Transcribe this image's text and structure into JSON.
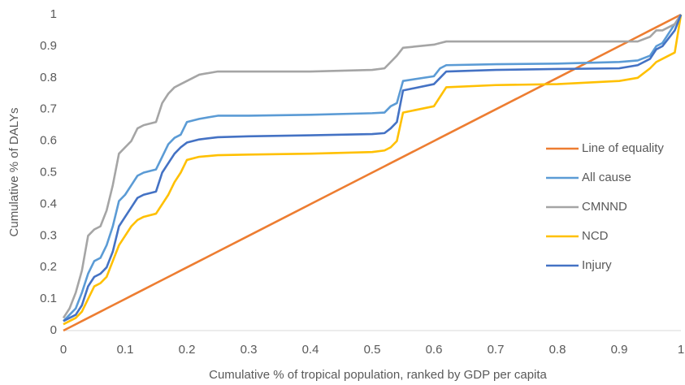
{
  "chart_data": {
    "type": "line",
    "x_label": "Cumulative % of tropical population, ranked by GDP per capita",
    "y_label": "Cumulative % of DALYs",
    "x": [
      0,
      0.01,
      0.02,
      0.03,
      0.04,
      0.05,
      0.06,
      0.07,
      0.08,
      0.09,
      0.1,
      0.11,
      0.12,
      0.13,
      0.15,
      0.16,
      0.17,
      0.18,
      0.19,
      0.2,
      0.22,
      0.25,
      0.3,
      0.4,
      0.5,
      0.52,
      0.53,
      0.54,
      0.55,
      0.6,
      0.61,
      0.62,
      0.7,
      0.8,
      0.9,
      0.93,
      0.95,
      0.96,
      0.97,
      0.99,
      1
    ],
    "series": [
      {
        "name": "Line of equality",
        "color": "#ED7D31",
        "values": [
          0,
          0.01,
          0.02,
          0.03,
          0.04,
          0.05,
          0.06,
          0.07,
          0.08,
          0.09,
          0.1,
          0.11,
          0.12,
          0.13,
          0.15,
          0.16,
          0.17,
          0.18,
          0.19,
          0.2,
          0.22,
          0.25,
          0.3,
          0.4,
          0.5,
          0.52,
          0.53,
          0.54,
          0.55,
          0.6,
          0.61,
          0.62,
          0.7,
          0.8,
          0.9,
          0.93,
          0.95,
          0.96,
          0.97,
          0.99,
          1
        ]
      },
      {
        "name": "All cause",
        "color": "#5B9BD5",
        "values": [
          0.03,
          0.05,
          0.07,
          0.12,
          0.18,
          0.22,
          0.23,
          0.27,
          0.33,
          0.41,
          0.43,
          0.46,
          0.49,
          0.5,
          0.51,
          0.55,
          0.59,
          0.61,
          0.62,
          0.66,
          0.67,
          0.68,
          0.68,
          0.683,
          0.688,
          0.69,
          0.71,
          0.72,
          0.79,
          0.805,
          0.83,
          0.84,
          0.843,
          0.845,
          0.85,
          0.855,
          0.87,
          0.9,
          0.91,
          0.97,
          1
        ]
      },
      {
        "name": "CMNND",
        "color": "#A5A5A5",
        "values": [
          0.04,
          0.07,
          0.12,
          0.19,
          0.3,
          0.32,
          0.33,
          0.38,
          0.46,
          0.56,
          0.58,
          0.6,
          0.64,
          0.65,
          0.66,
          0.72,
          0.75,
          0.77,
          0.78,
          0.79,
          0.81,
          0.82,
          0.82,
          0.82,
          0.825,
          0.83,
          0.85,
          0.87,
          0.895,
          0.905,
          0.91,
          0.915,
          0.915,
          0.915,
          0.915,
          0.915,
          0.93,
          0.95,
          0.95,
          0.97,
          1
        ]
      },
      {
        "name": "NCD",
        "color": "#FFC000",
        "values": [
          0.02,
          0.03,
          0.04,
          0.06,
          0.1,
          0.14,
          0.15,
          0.17,
          0.22,
          0.27,
          0.3,
          0.33,
          0.35,
          0.36,
          0.37,
          0.4,
          0.43,
          0.47,
          0.5,
          0.54,
          0.55,
          0.555,
          0.557,
          0.56,
          0.565,
          0.57,
          0.58,
          0.6,
          0.69,
          0.71,
          0.74,
          0.77,
          0.777,
          0.78,
          0.79,
          0.8,
          0.83,
          0.85,
          0.86,
          0.88,
          1
        ]
      },
      {
        "name": "Injury",
        "color": "#4472C4",
        "values": [
          0.03,
          0.04,
          0.05,
          0.08,
          0.14,
          0.17,
          0.18,
          0.2,
          0.25,
          0.33,
          0.36,
          0.39,
          0.42,
          0.43,
          0.44,
          0.5,
          0.53,
          0.56,
          0.58,
          0.595,
          0.605,
          0.612,
          0.615,
          0.618,
          0.622,
          0.625,
          0.64,
          0.66,
          0.76,
          0.78,
          0.8,
          0.82,
          0.825,
          0.828,
          0.83,
          0.84,
          0.86,
          0.89,
          0.9,
          0.95,
          1
        ]
      }
    ],
    "xlim": [
      0,
      1
    ],
    "ylim": [
      0,
      1
    ],
    "xticks": [
      0,
      0.1,
      0.2,
      0.3,
      0.4,
      0.5,
      0.6,
      0.7,
      0.8,
      0.9,
      1
    ],
    "yticks": [
      0,
      0.1,
      0.2,
      0.3,
      0.4,
      0.5,
      0.6,
      0.7,
      0.8,
      0.9,
      1
    ],
    "grid": false,
    "legend": "right"
  }
}
